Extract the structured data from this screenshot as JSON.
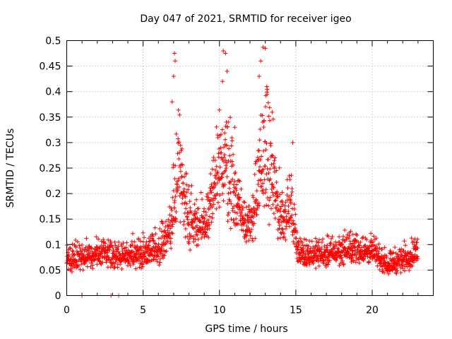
{
  "chart_data": {
    "type": "scatter",
    "title": "Day 047 of 2021, SRMTID for receiver igeo",
    "xlabel": "GPS time / hours",
    "ylabel": "SRMTID / TECUs",
    "xlim": [
      0,
      24
    ],
    "ylim": [
      0,
      0.5
    ],
    "xticks": [
      0,
      5,
      10,
      15,
      20
    ],
    "xtick_labels": [
      "0",
      "5",
      "10",
      "15",
      "20"
    ],
    "yticks": [
      0,
      0.05,
      0.1,
      0.15,
      0.2,
      0.25,
      0.3,
      0.35,
      0.4,
      0.45,
      0.5
    ],
    "ytick_labels": [
      "0",
      "0.05",
      "0.1",
      "0.15",
      "0.2",
      "0.25",
      "0.3",
      "0.35",
      "0.4",
      "0.45",
      "0.5"
    ],
    "grid": true,
    "marker": "plus",
    "color": "#ff0000",
    "series": [
      {
        "name": "SRMTID",
        "profile": [
          {
            "x": 0.0,
            "base": 0.07,
            "spread": 0.03
          },
          {
            "x": 2.0,
            "base": 0.08,
            "spread": 0.03
          },
          {
            "x": 4.0,
            "base": 0.075,
            "spread": 0.03
          },
          {
            "x": 6.0,
            "base": 0.09,
            "spread": 0.04
          },
          {
            "x": 6.8,
            "base": 0.12,
            "spread": 0.05
          },
          {
            "x": 7.3,
            "base": 0.25,
            "spread": 0.13
          },
          {
            "x": 8.0,
            "base": 0.15,
            "spread": 0.07
          },
          {
            "x": 9.0,
            "base": 0.13,
            "spread": 0.05
          },
          {
            "x": 10.3,
            "base": 0.27,
            "spread": 0.15
          },
          {
            "x": 11.3,
            "base": 0.17,
            "spread": 0.07
          },
          {
            "x": 12.0,
            "base": 0.13,
            "spread": 0.05
          },
          {
            "x": 13.0,
            "base": 0.28,
            "spread": 0.15
          },
          {
            "x": 14.0,
            "base": 0.15,
            "spread": 0.07
          },
          {
            "x": 14.7,
            "base": 0.17,
            "spread": 0.06
          },
          {
            "x": 15.2,
            "base": 0.08,
            "spread": 0.03
          },
          {
            "x": 17.0,
            "base": 0.08,
            "spread": 0.03
          },
          {
            "x": 18.5,
            "base": 0.09,
            "spread": 0.035
          },
          {
            "x": 20.0,
            "base": 0.085,
            "spread": 0.03
          },
          {
            "x": 21.0,
            "base": 0.06,
            "spread": 0.025
          },
          {
            "x": 22.0,
            "base": 0.07,
            "spread": 0.03
          },
          {
            "x": 23.0,
            "base": 0.085,
            "spread": 0.03
          }
        ],
        "points": [
          {
            "x": 7.05,
            "y": 0.475
          },
          {
            "x": 7.1,
            "y": 0.46
          },
          {
            "x": 7.0,
            "y": 0.43
          },
          {
            "x": 10.25,
            "y": 0.48
          },
          {
            "x": 10.4,
            "y": 0.475
          },
          {
            "x": 10.5,
            "y": 0.44
          },
          {
            "x": 12.85,
            "y": 0.487
          },
          {
            "x": 13.0,
            "y": 0.485
          },
          {
            "x": 12.7,
            "y": 0.46
          },
          {
            "x": 12.6,
            "y": 0.43
          },
          {
            "x": 13.1,
            "y": 0.41
          },
          {
            "x": 10.2,
            "y": 0.42
          },
          {
            "x": 14.8,
            "y": 0.3
          },
          {
            "x": 6.9,
            "y": 0.38
          },
          {
            "x": 11.0,
            "y": 0.33
          },
          {
            "x": 1.0,
            "y": 0.0
          },
          {
            "x": 2.9,
            "y": 0.0
          },
          {
            "x": 3.4,
            "y": 0.0
          }
        ]
      }
    ]
  }
}
